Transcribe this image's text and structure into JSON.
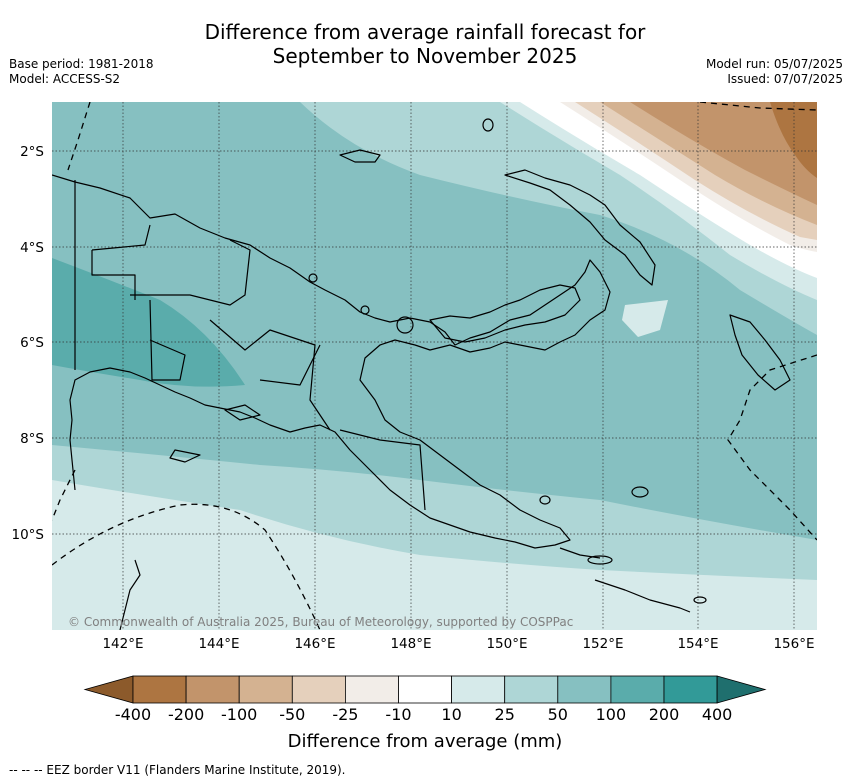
{
  "title_line1": "Difference from average rainfall forecast for",
  "title_line2": "September to November 2025",
  "base_period": "Base period: 1981-2018",
  "model": "Model: ACCESS-S2",
  "model_run": "Model run: 05/07/2025",
  "issued": "Issued: 07/07/2025",
  "lat_labels": [
    "2°S",
    "4°S",
    "6°S",
    "8°S",
    "10°S"
  ],
  "lon_labels": [
    "142°E",
    "144°E",
    "146°E",
    "148°E",
    "150°E",
    "152°E",
    "154°E",
    "156°E"
  ],
  "copyright": "© Commonwealth of Australia 2025, Bureau of Meteorology, supported by COSPPac",
  "colorbar": {
    "labels": [
      "-400",
      "-200",
      "-100",
      "-50",
      "-25",
      "-10",
      "10",
      "25",
      "50",
      "100",
      "200",
      "400"
    ],
    "colors": [
      "#8c5a2b",
      "#ad7541",
      "#c2946b",
      "#d4b291",
      "#e5d0bc",
      "#f2ede8",
      "#ffffff",
      "#d6eaea",
      "#aed6d6",
      "#86c0c1",
      "#5aacab",
      "#329a98",
      "#1f6f6e"
    ],
    "title": "Difference from average (mm)"
  },
  "footer": "--  --  -- EEZ border V11 (Flanders Marine Institute, 2019)."
}
